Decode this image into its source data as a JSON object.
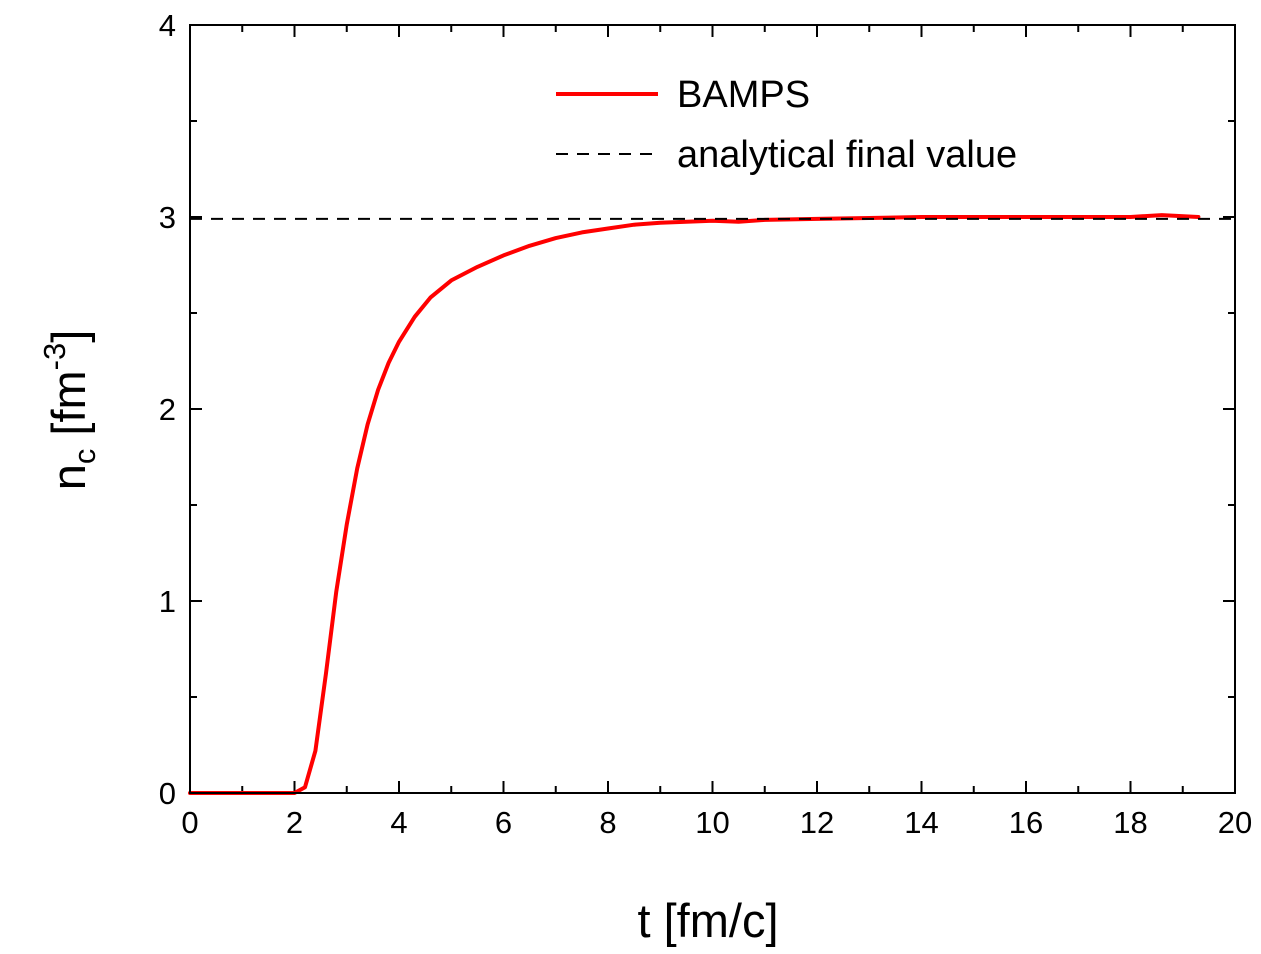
{
  "chart_data": {
    "type": "line",
    "title": "",
    "xlabel": "t [fm/c]",
    "ylabel": {
      "base": "n",
      "subscript": "c",
      "unit_open": " [fm",
      "superscript": "-3",
      "unit_close": "]"
    },
    "xlim": [
      0,
      20
    ],
    "ylim": [
      0,
      4
    ],
    "xticks": [
      0,
      2,
      4,
      6,
      8,
      10,
      12,
      14,
      16,
      18,
      20
    ],
    "xtick_labels": [
      "0",
      "2",
      "4",
      "6",
      "8",
      "10",
      "12",
      "14",
      "16",
      "18",
      "20"
    ],
    "yticks": [
      0,
      1,
      2,
      3,
      4
    ],
    "ytick_labels": [
      "0",
      "1",
      "2",
      "3",
      "4"
    ],
    "grid": false,
    "legend_position": "top-center",
    "series": [
      {
        "name": "BAMPS",
        "style": "solid",
        "color": "#ff0000",
        "x": [
          0,
          1,
          2.0,
          2.2,
          2.4,
          2.6,
          2.8,
          3.0,
          3.2,
          3.4,
          3.6,
          3.8,
          4.0,
          4.3,
          4.6,
          5.0,
          5.5,
          6.0,
          6.5,
          7.0,
          7.5,
          8.0,
          8.5,
          9.0,
          9.5,
          10.0,
          10.5,
          11.0,
          12.0,
          13.0,
          14.0,
          15.0,
          16.0,
          17.0,
          18.0,
          18.6,
          19.3
        ],
        "y": [
          0,
          0,
          0.0,
          0.03,
          0.22,
          0.62,
          1.05,
          1.4,
          1.69,
          1.92,
          2.1,
          2.24,
          2.35,
          2.48,
          2.58,
          2.67,
          2.74,
          2.8,
          2.85,
          2.89,
          2.92,
          2.94,
          2.96,
          2.97,
          2.975,
          2.98,
          2.975,
          2.985,
          2.99,
          2.995,
          3.0,
          3.0,
          3.0,
          3.0,
          3.0,
          3.01,
          3.0
        ]
      },
      {
        "name": "analytical final value",
        "style": "dashed",
        "color": "#000000",
        "x": [
          0,
          20
        ],
        "y": [
          2.99,
          2.99
        ]
      }
    ]
  }
}
